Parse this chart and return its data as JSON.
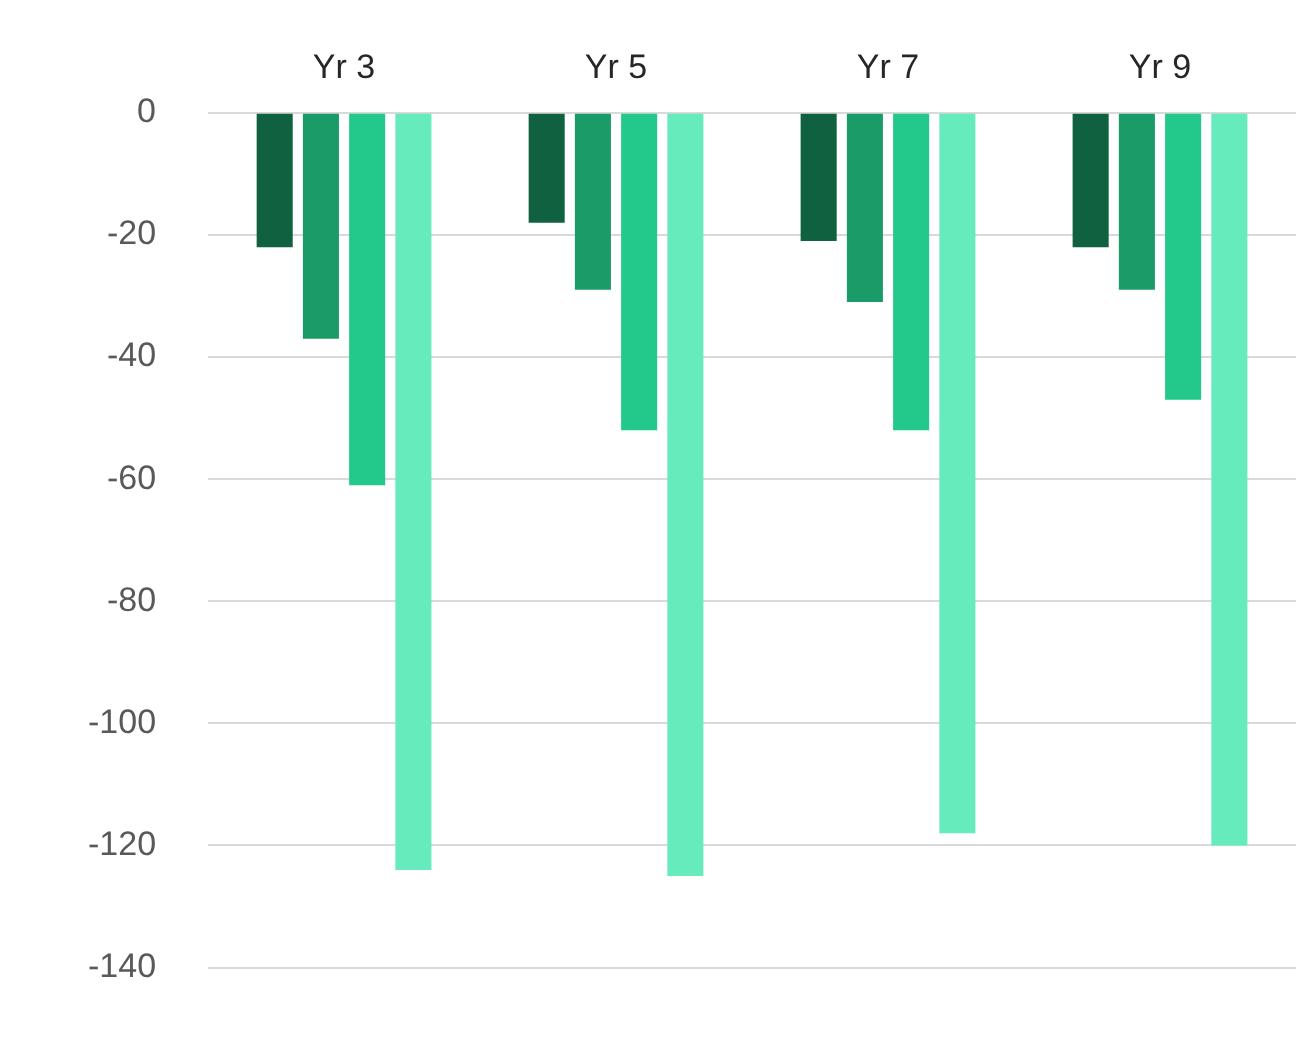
{
  "chart_data": {
    "type": "bar",
    "categories": [
      "Yr 3",
      "Yr 5",
      "Yr 7",
      "Yr 9"
    ],
    "series": [
      {
        "color": "#0f6140",
        "values": [
          -22,
          -18,
          -21,
          -22
        ]
      },
      {
        "color": "#1a9b68",
        "values": [
          -37,
          -29,
          -31,
          -29
        ]
      },
      {
        "color": "#22c98a",
        "values": [
          -61,
          -52,
          -52,
          -47
        ]
      },
      {
        "color": "#66ebbd",
        "values": [
          -124,
          -125,
          -118,
          -120
        ]
      }
    ],
    "ylim": [
      -140,
      0
    ],
    "yticks": [
      -140,
      -120,
      -100,
      -80,
      -60,
      -40,
      -20,
      0
    ],
    "grid": "y",
    "legend": false
  }
}
